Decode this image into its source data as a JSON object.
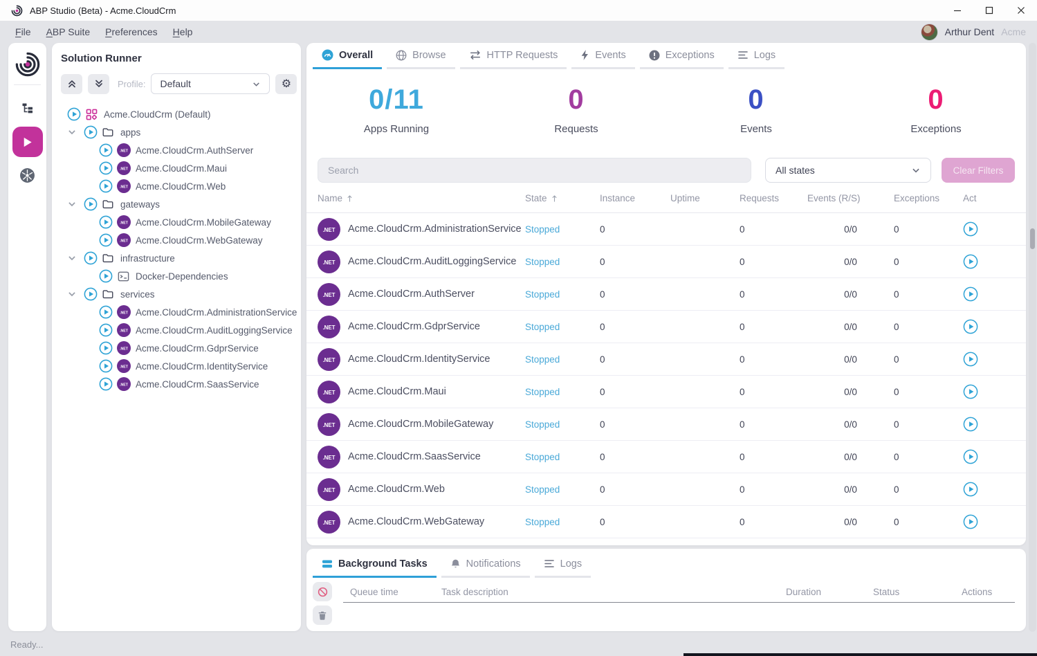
{
  "window": {
    "title": "ABP Studio (Beta) - Acme.CloudCrm"
  },
  "menu_bar": {
    "items": [
      {
        "label": "File"
      },
      {
        "label": "ABP Suite"
      },
      {
        "label": "Preferences"
      },
      {
        "label": "Help"
      }
    ],
    "user": {
      "name": "Arthur Dent",
      "tenant": "Acme"
    }
  },
  "solution_runner": {
    "title": "Solution Runner",
    "profile_label": "Profile:",
    "profile_value": "Default",
    "tree": [
      {
        "kind": "solution",
        "label": "Acme.CloudCrm (Default)"
      },
      {
        "kind": "folder",
        "label": "apps"
      },
      {
        "kind": "project",
        "label": "Acme.CloudCrm.AuthServer"
      },
      {
        "kind": "project",
        "label": "Acme.CloudCrm.Maui"
      },
      {
        "kind": "project",
        "label": "Acme.CloudCrm.Web"
      },
      {
        "kind": "folder",
        "label": "gateways"
      },
      {
        "kind": "project",
        "label": "Acme.CloudCrm.MobileGateway"
      },
      {
        "kind": "project",
        "label": "Acme.CloudCrm.WebGateway"
      },
      {
        "kind": "folder",
        "label": "infrastructure"
      },
      {
        "kind": "docker",
        "label": "Docker-Dependencies"
      },
      {
        "kind": "folder",
        "label": "services"
      },
      {
        "kind": "project",
        "label": "Acme.CloudCrm.AdministrationService"
      },
      {
        "kind": "project",
        "label": "Acme.CloudCrm.AuditLoggingService"
      },
      {
        "kind": "project",
        "label": "Acme.CloudCrm.GdprService"
      },
      {
        "kind": "project",
        "label": "Acme.CloudCrm.IdentityService"
      },
      {
        "kind": "project",
        "label": "Acme.CloudCrm.SaasService"
      }
    ]
  },
  "main": {
    "tabs": [
      {
        "label": "Overall",
        "active": true
      },
      {
        "label": "Browse"
      },
      {
        "label": "HTTP Requests"
      },
      {
        "label": "Events"
      },
      {
        "label": "Exceptions"
      },
      {
        "label": "Logs"
      }
    ],
    "stats": [
      {
        "value": "0/11",
        "label": "Apps Running",
        "color": "#3fa9dc"
      },
      {
        "value": "0",
        "label": "Requests",
        "color": "#a23c9f"
      },
      {
        "value": "0",
        "label": "Events",
        "color": "#3b50c4"
      },
      {
        "value": "0",
        "label": "Exceptions",
        "color": "#ec1c74"
      }
    ],
    "search_placeholder": "Search",
    "state_filter_value": "All states",
    "clear_filters_label": "Clear Filters",
    "table": {
      "columns": [
        "Name",
        "State",
        "Instance",
        "Uptime",
        "Requests",
        "Events (R/S)",
        "Exceptions",
        "Act"
      ],
      "rows": [
        {
          "name": "Acme.CloudCrm.AdministrationService",
          "state": "Stopped",
          "instance": "0",
          "uptime": "",
          "requests": "0",
          "events": "0/0",
          "exceptions": "0"
        },
        {
          "name": "Acme.CloudCrm.AuditLoggingService",
          "state": "Stopped",
          "instance": "0",
          "uptime": "",
          "requests": "0",
          "events": "0/0",
          "exceptions": "0"
        },
        {
          "name": "Acme.CloudCrm.AuthServer",
          "state": "Stopped",
          "instance": "0",
          "uptime": "",
          "requests": "0",
          "events": "0/0",
          "exceptions": "0"
        },
        {
          "name": "Acme.CloudCrm.GdprService",
          "state": "Stopped",
          "instance": "0",
          "uptime": "",
          "requests": "0",
          "events": "0/0",
          "exceptions": "0"
        },
        {
          "name": "Acme.CloudCrm.IdentityService",
          "state": "Stopped",
          "instance": "0",
          "uptime": "",
          "requests": "0",
          "events": "0/0",
          "exceptions": "0"
        },
        {
          "name": "Acme.CloudCrm.Maui",
          "state": "Stopped",
          "instance": "0",
          "uptime": "",
          "requests": "0",
          "events": "0/0",
          "exceptions": "0"
        },
        {
          "name": "Acme.CloudCrm.MobileGateway",
          "state": "Stopped",
          "instance": "0",
          "uptime": "",
          "requests": "0",
          "events": "0/0",
          "exceptions": "0"
        },
        {
          "name": "Acme.CloudCrm.SaasService",
          "state": "Stopped",
          "instance": "0",
          "uptime": "",
          "requests": "0",
          "events": "0/0",
          "exceptions": "0"
        },
        {
          "name": "Acme.CloudCrm.Web",
          "state": "Stopped",
          "instance": "0",
          "uptime": "",
          "requests": "0",
          "events": "0/0",
          "exceptions": "0"
        },
        {
          "name": "Acme.CloudCrm.WebGateway",
          "state": "Stopped",
          "instance": "0",
          "uptime": "",
          "requests": "0",
          "events": "0/0",
          "exceptions": "0"
        }
      ]
    }
  },
  "bottom_panel": {
    "tabs": [
      {
        "label": "Background Tasks",
        "active": true
      },
      {
        "label": "Notifications"
      },
      {
        "label": "Logs"
      }
    ],
    "columns": [
      "Queue time",
      "Task description",
      "Duration",
      "Status",
      "Actions"
    ]
  },
  "status_bar": {
    "text": "Ready..."
  },
  "colors": {
    "accent_blue": "#2ea3d6",
    "brand_magenta": "#c2329b",
    "dotnet_purple": "#6b2d90",
    "stopped_state": "#4aa9d8"
  }
}
